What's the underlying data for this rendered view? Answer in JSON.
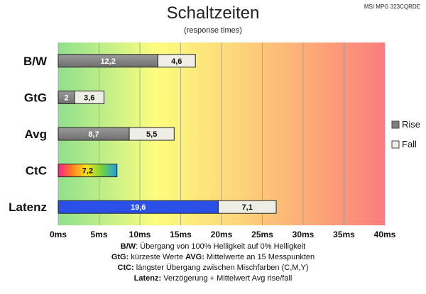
{
  "chart_data": {
    "type": "bar",
    "title": "Schaltzeiten",
    "subtitle": "(response times)",
    "model": "MSI MPG 323CQRDE",
    "categories": [
      "B/W",
      "GtG",
      "Avg",
      "CtC",
      "Latenz"
    ],
    "series": [
      {
        "name": "Rise",
        "values": [
          12.2,
          2,
          8.7,
          7.2,
          19.6
        ],
        "labels": [
          "12,2",
          "2",
          "8,7",
          "7,2",
          "19,6"
        ],
        "color": "#808080"
      },
      {
        "name": "Fall",
        "values": [
          4.6,
          3.6,
          5.5,
          null,
          7.1
        ],
        "labels": [
          "4,6",
          "3,6",
          "5,5",
          "",
          "7,1"
        ],
        "color": "#efeee4"
      }
    ],
    "special_colors": {
      "CtC": "rainbow",
      "Latenz": "#2b50e8"
    },
    "xlim": [
      0,
      40
    ],
    "xticks": [
      "0ms",
      "5ms",
      "10ms",
      "15ms",
      "20ms",
      "25ms",
      "30ms",
      "35ms",
      "40ms"
    ],
    "grid": true,
    "background": "green-yellow-red gradient",
    "legend_position": "right"
  },
  "footnotes": [
    [
      {
        "b": "B/W"
      },
      {
        "t": ":  Übergang von 100% Helligkeit auf 0% Helligkeit"
      }
    ],
    [
      {
        "b": "GtG:"
      },
      {
        "t": " kürzeste  Werte        "
      },
      {
        "b": "AVG:"
      },
      {
        "t": " Mittelwerte  an 15 Messpunkten"
      }
    ],
    [
      {
        "b": "CtC:"
      },
      {
        "t": " längster Übergang  zwischen Mischfarben  (C,M,Y)"
      }
    ],
    [
      {
        "b": "Latenz:"
      },
      {
        "t": " Verzögerung  + Mittelwert  Avg rise/fall"
      }
    ]
  ]
}
